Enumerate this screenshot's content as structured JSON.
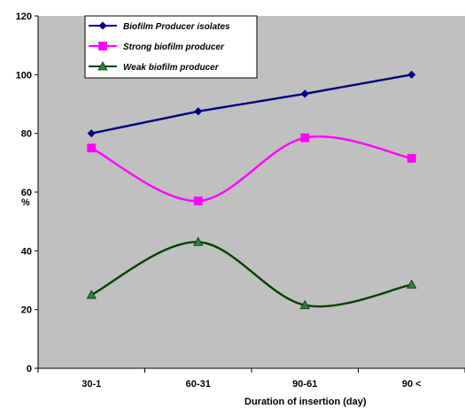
{
  "chart_data": {
    "type": "line",
    "categories": [
      "30-1",
      "60-31",
      "90-61",
      "90 <"
    ],
    "series": [
      {
        "name": "Biofilm Producer isolates",
        "values": [
          80,
          87.5,
          93.5,
          100
        ],
        "color": "#000080",
        "marker": "diamond",
        "smooth": false
      },
      {
        "name": "Strong biofilm producer",
        "values": [
          75,
          57,
          78.5,
          71.5
        ],
        "color": "#ff00ff",
        "marker": "square",
        "smooth": true
      },
      {
        "name": "Weak biofilm producer",
        "values": [
          25,
          43,
          21.5,
          28.5
        ],
        "color": "#004000",
        "marker": "triangle",
        "marker_color": "#2e7d4f",
        "smooth": true
      }
    ],
    "xlabel": "Duration of insertion  (day)",
    "ylabel": "%",
    "ylim": [
      0,
      120
    ],
    "yticks": [
      0,
      20,
      40,
      60,
      80,
      100,
      120
    ],
    "grid": false,
    "legend_position": "top-left",
    "plot_background": "#c0c0c0"
  }
}
